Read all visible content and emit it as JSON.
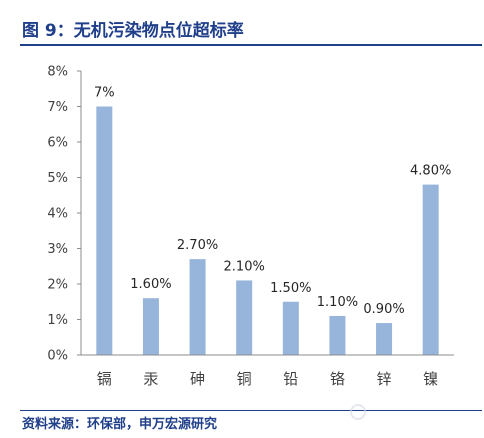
{
  "figure": {
    "source": "资料来源：环保部，申万宏源研究"
  },
  "colors": {
    "accent": "#203f8a",
    "bar": "#97b4da",
    "axis": "#8c8c8c",
    "tick_text": "#404040",
    "label_text": "#262626"
  },
  "icons": {
    "watermark": "watermark-logo-icon"
  },
  "chart_data": {
    "type": "bar",
    "title": "图 9：无机污染物点位超标率",
    "xlabel": "",
    "ylabel": "",
    "categories": [
      "镉",
      "汞",
      "砷",
      "铜",
      "铅",
      "铬",
      "锌",
      "镍"
    ],
    "values": [
      7,
      1.6,
      2.7,
      2.1,
      1.5,
      1.1,
      0.9,
      4.8
    ],
    "value_labels": [
      "7%",
      "1.60%",
      "2.70%",
      "2.10%",
      "1.50%",
      "1.10%",
      "0.90%",
      "4.80%"
    ],
    "ylim": [
      0,
      8
    ],
    "yticks": [
      0,
      1,
      2,
      3,
      4,
      5,
      6,
      7,
      8
    ],
    "ytick_labels": [
      "0%",
      "1%",
      "2%",
      "3%",
      "4%",
      "5%",
      "6%",
      "7%",
      "8%"
    ],
    "grid": false,
    "legend": false
  }
}
